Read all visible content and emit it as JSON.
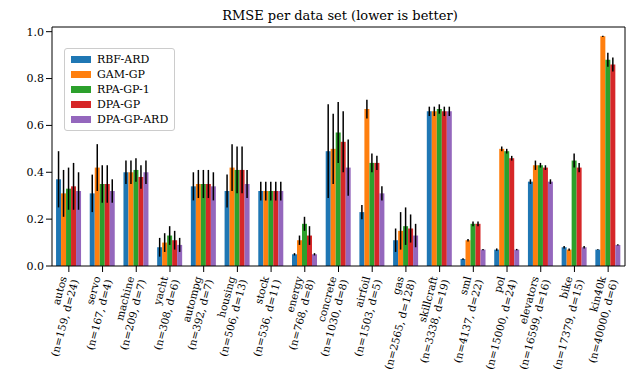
{
  "chart_data": {
    "type": "bar",
    "title": "RMSE per data set (lower is better)",
    "categories": [
      "autos (n=159, d=24)",
      "servo (n=167, d=4)",
      "machine (n=209, d=7)",
      "yacht (n=308, d=6)",
      "autompg (n=392, d=7)",
      "housing (n=506, d=13)",
      "stock (n=536, d=11)",
      "energy (n=768, d=8)",
      "concrete (n=1030, d=8)",
      "airfoil (n=1503, d=5)",
      "gas (n=2565, d=128)",
      "skillcraft (n=3338, d=19)",
      "sml (n=4137, d=22)",
      "pol (n=15000, d=24)",
      "elevators (n=16599, d=16)",
      "bike (n=17379, d=15)",
      "kin40k (n=40000, d=6)"
    ],
    "series": [
      {
        "name": "RBF-ARD",
        "color": "#1f77b4",
        "values": [
          0.37,
          0.31,
          0.4,
          0.08,
          0.34,
          0.32,
          0.32,
          0.05,
          0.49,
          0.23,
          0.11,
          0.66,
          0.03,
          0.07,
          0.36,
          0.08,
          0.07
        ],
        "errors": [
          0.12,
          0.08,
          0.05,
          0.04,
          0.06,
          0.07,
          0.04,
          0.005,
          0.2,
          0.03,
          0.05,
          0.02,
          0.003,
          0.005,
          0.01,
          0.005,
          0.002
        ]
      },
      {
        "name": "GAM-GP",
        "color": "#ff7f0e",
        "values": [
          0.31,
          0.42,
          0.4,
          0.1,
          0.35,
          0.42,
          0.32,
          0.11,
          0.5,
          0.67,
          0.15,
          0.66,
          0.11,
          0.5,
          0.43,
          0.07,
          0.98
        ],
        "errors": [
          0.1,
          0.1,
          0.05,
          0.04,
          0.06,
          0.1,
          0.04,
          0.02,
          0.15,
          0.04,
          0.08,
          0.02,
          0.005,
          0.01,
          0.02,
          0.005,
          0.003
        ]
      },
      {
        "name": "RPA-GP-1",
        "color": "#2ca02c",
        "values": [
          0.33,
          0.35,
          0.41,
          0.13,
          0.35,
          0.41,
          0.32,
          0.18,
          0.57,
          0.44,
          0.17,
          0.67,
          0.18,
          0.49,
          0.43,
          0.45,
          0.88
        ],
        "errors": [
          0.09,
          0.08,
          0.05,
          0.04,
          0.06,
          0.1,
          0.04,
          0.03,
          0.13,
          0.04,
          0.08,
          0.02,
          0.01,
          0.01,
          0.01,
          0.03,
          0.03
        ]
      },
      {
        "name": "DPA-GP",
        "color": "#d62728",
        "values": [
          0.34,
          0.35,
          0.38,
          0.11,
          0.35,
          0.41,
          0.32,
          0.13,
          0.53,
          0.44,
          0.16,
          0.66,
          0.18,
          0.46,
          0.42,
          0.42,
          0.86
        ],
        "errors": [
          0.1,
          0.08,
          0.05,
          0.04,
          0.06,
          0.1,
          0.04,
          0.04,
          0.13,
          0.03,
          0.06,
          0.02,
          0.01,
          0.01,
          0.01,
          0.02,
          0.03
        ]
      },
      {
        "name": "DPA-GP-ARD",
        "color": "#9467bd",
        "values": [
          0.32,
          0.32,
          0.4,
          0.09,
          0.34,
          0.35,
          0.32,
          0.05,
          0.42,
          0.31,
          0.13,
          0.66,
          0.07,
          0.07,
          0.36,
          0.08,
          0.09
        ],
        "errors": [
          0.08,
          0.05,
          0.05,
          0.03,
          0.06,
          0.06,
          0.04,
          0.005,
          0.12,
          0.03,
          0.05,
          0.02,
          0.003,
          0.003,
          0.01,
          0.005,
          0.003
        ]
      }
    ],
    "ylim": [
      0,
      1.02
    ],
    "yticks": [
      {
        "value": 0,
        "label": "0.0"
      },
      {
        "value": 0.2,
        "label": "0.2"
      },
      {
        "value": 0.4,
        "label": "0.4"
      },
      {
        "value": 0.6,
        "label": "0.6"
      },
      {
        "value": 0.8,
        "label": "0.8"
      },
      {
        "value": 1,
        "label": "1.0"
      }
    ],
    "grid": false,
    "legend": "upper left"
  }
}
